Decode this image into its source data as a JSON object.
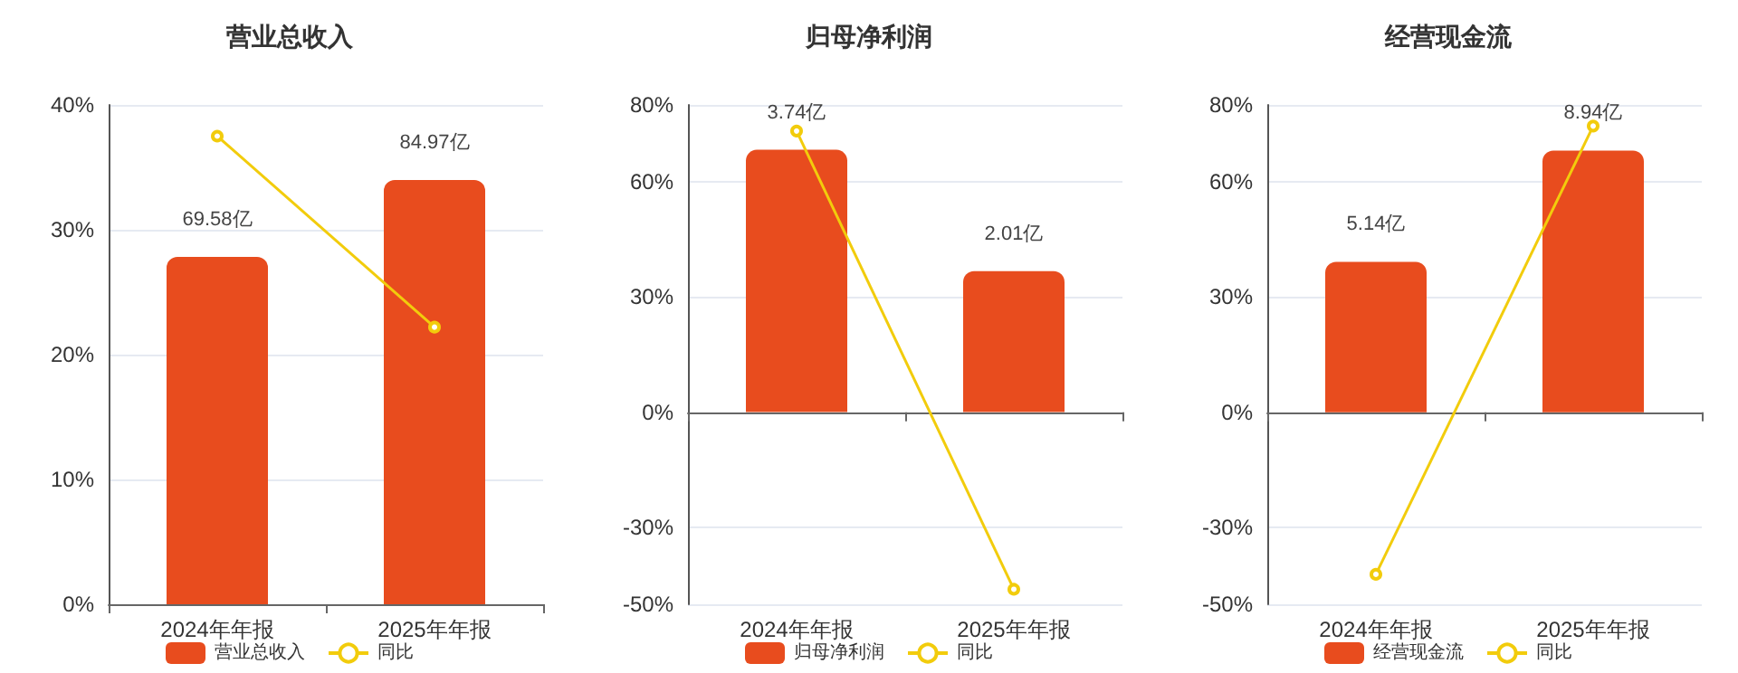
{
  "chart_data": [
    {
      "type": "bar",
      "title": "营业总收入",
      "categories": [
        "2024年年报",
        "2025年年报"
      ],
      "series": [
        {
          "name": "营业总收入",
          "type": "bar",
          "axis": "y2",
          "color": "#e84c1e",
          "values": [
            69.58,
            84.97
          ],
          "value_labels": [
            "69.58亿",
            "84.97亿"
          ]
        },
        {
          "name": "同比",
          "type": "line",
          "color": "#f2cc0c",
          "values": [
            37.5,
            22.2
          ]
        }
      ],
      "ylim": [
        0,
        40
      ],
      "yticks": [
        {
          "value": 0,
          "label": "0%"
        },
        {
          "value": 10,
          "label": "10%"
        },
        {
          "value": 20,
          "label": "20%"
        },
        {
          "value": 30,
          "label": "30%"
        },
        {
          "value": 40,
          "label": "40%"
        }
      ],
      "y2lim": [
        0,
        100
      ],
      "grid": "y",
      "legend": "bottom",
      "marker": "circle"
    },
    {
      "type": "bar",
      "title": "归母净利润",
      "categories": [
        "2024年年报",
        "2025年年报"
      ],
      "series": [
        {
          "name": "归母净利润",
          "type": "bar",
          "axis": "y2",
          "color": "#e84c1e",
          "values": [
            3.74,
            2.01
          ],
          "value_labels": [
            "3.74亿",
            "2.01亿"
          ]
        },
        {
          "name": "同比",
          "type": "line",
          "color": "#f2cc0c",
          "values": [
            73.2,
            -46.1
          ]
        }
      ],
      "ylim": [
        -50,
        80
      ],
      "yticks": [
        {
          "value": -50,
          "label": "-50%"
        },
        {
          "value": -30,
          "label": "-30%"
        },
        {
          "value": 0,
          "label": "0%"
        },
        {
          "value": 30,
          "label": "30%"
        },
        {
          "value": 60,
          "label": "60%"
        },
        {
          "value": 80,
          "label": "80%"
        }
      ],
      "y2lim": [
        -2.74,
        4.38
      ],
      "grid": "y",
      "legend": "bottom",
      "marker": "circle"
    },
    {
      "type": "bar",
      "title": "经营现金流",
      "categories": [
        "2024年年报",
        "2025年年报"
      ],
      "series": [
        {
          "name": "经营现金流",
          "type": "bar",
          "axis": "y2",
          "color": "#e84c1e",
          "values": [
            5.14,
            8.94
          ],
          "value_labels": [
            "5.14亿",
            "8.94亿"
          ]
        },
        {
          "name": "同比",
          "type": "line",
          "color": "#f2cc0c",
          "values": [
            -42.2,
            74.5
          ]
        }
      ],
      "ylim": [
        -50,
        80
      ],
      "yticks": [
        {
          "value": -50,
          "label": "-50%"
        },
        {
          "value": -30,
          "label": "-30%"
        },
        {
          "value": 0,
          "label": "0%"
        },
        {
          "value": 30,
          "label": "30%"
        },
        {
          "value": 60,
          "label": "60%"
        },
        {
          "value": 80,
          "label": "80%"
        }
      ],
      "y2lim": [
        -6.56,
        10.5
      ],
      "grid": "y",
      "legend": "bottom",
      "marker": "circle"
    }
  ]
}
